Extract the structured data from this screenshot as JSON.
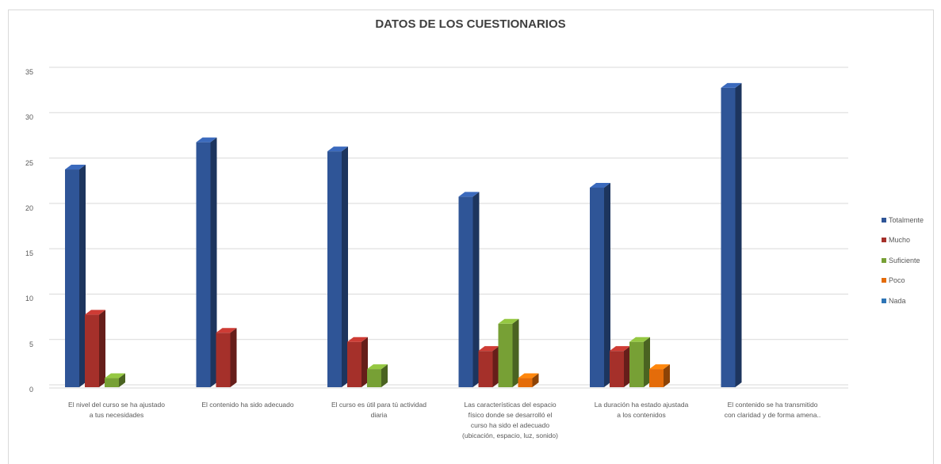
{
  "chart_data": {
    "type": "bar",
    "title": "DATOS DE LOS CUESTIONARIOS",
    "categories": [
      "El nivel del curso se ha ajustado a tus necesidades",
      "El contenido ha sido adecuado",
      "El curso es útil para tú actividad diaria",
      "Las características del espacio físico donde se desarrolló el curso ha sido el adecuado (ubicación, espacio, luz, sonido)",
      "La duración ha estado ajustada a los contenidos",
      "El contenido se ha transmitido con claridad y de forma amena.."
    ],
    "series": [
      {
        "name": "Totalmente",
        "color": "#2f5597",
        "values": [
          24,
          27,
          26,
          21,
          22,
          33
        ]
      },
      {
        "name": "Mucho",
        "color": "#a5302a",
        "values": [
          8,
          6,
          5,
          4,
          4,
          0
        ]
      },
      {
        "name": "Suficiente",
        "color": "#77a035",
        "values": [
          1,
          0,
          2,
          7,
          5,
          0
        ]
      },
      {
        "name": "Poco",
        "color": "#e46c0a",
        "values": [
          0,
          0,
          0,
          1,
          2,
          0
        ]
      },
      {
        "name": "Nada",
        "color": "#2e75b6",
        "values": [
          0,
          0,
          0,
          0,
          0,
          0
        ]
      }
    ],
    "ylim": [
      0,
      35
    ],
    "yticks": [
      "0",
      "5",
      "10",
      "15",
      "20",
      "25",
      "30",
      "35"
    ],
    "grid": true,
    "legend_position": "right",
    "style": "3d-column"
  }
}
